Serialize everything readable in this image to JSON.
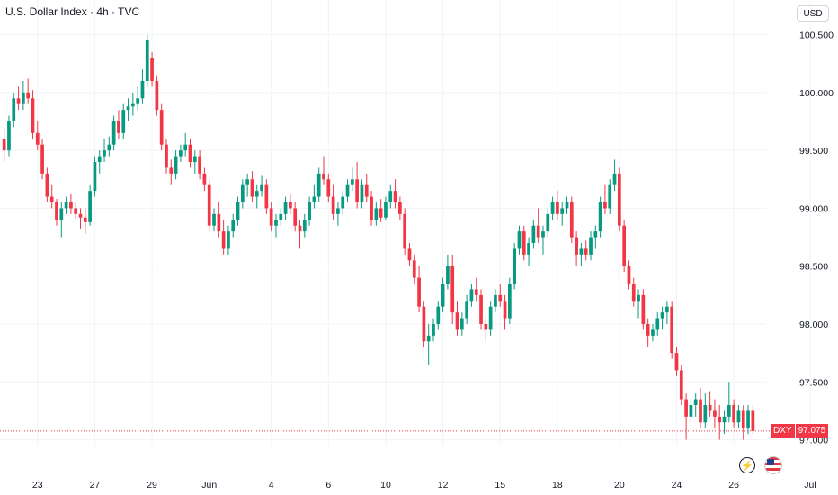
{
  "header": {
    "title": "U.S. Dollar Index · 4h · TVC",
    "currency_label": "USD"
  },
  "price_tag": {
    "symbol": "DXY",
    "value": "97.075"
  },
  "colors": {
    "up": "#089981",
    "down": "#f23645",
    "grid": "#f0f3fa",
    "text": "#131722",
    "axis_text": "#131722"
  },
  "icons": [
    "bolt-icon",
    "us-flag-icon"
  ],
  "chart_data": {
    "type": "candlestick",
    "title": "U.S. Dollar Index · 4h · TVC",
    "xlabel": "",
    "ylabel": "",
    "ylim": [
      96.95,
      100.8
    ],
    "current_price": 97.075,
    "y_ticks": [
      {
        "value": 100.5,
        "label": "100.500"
      },
      {
        "value": 100.0,
        "label": "100.000"
      },
      {
        "value": 99.5,
        "label": "99.500"
      },
      {
        "value": 99.0,
        "label": "99.000"
      },
      {
        "value": 98.5,
        "label": "98.500"
      },
      {
        "value": 98.0,
        "label": "98.000"
      },
      {
        "value": 97.5,
        "label": "97.500"
      },
      {
        "value": 97.0,
        "label": "97.000"
      }
    ],
    "x_ticks": [
      {
        "index": 7,
        "label": "23"
      },
      {
        "index": 19,
        "label": "27"
      },
      {
        "index": 31,
        "label": "29"
      },
      {
        "index": 43,
        "label": "Jun"
      },
      {
        "index": 56,
        "label": "4"
      },
      {
        "index": 68,
        "label": "6"
      },
      {
        "index": 80,
        "label": "10"
      },
      {
        "index": 92,
        "label": "12"
      },
      {
        "index": 104,
        "label": "15"
      },
      {
        "index": 116,
        "label": "18"
      },
      {
        "index": 129,
        "label": "20"
      },
      {
        "index": 141,
        "label": "24"
      },
      {
        "index": 153,
        "label": "26"
      },
      {
        "index": 169,
        "label": "Jul"
      }
    ],
    "candles": [
      [
        99.6,
        99.7,
        99.4,
        99.5
      ],
      [
        99.5,
        99.8,
        99.45,
        99.75
      ],
      [
        99.75,
        100.0,
        99.7,
        99.95
      ],
      [
        99.95,
        100.05,
        99.85,
        99.9
      ],
      [
        99.9,
        100.1,
        99.85,
        100.0
      ],
      [
        100.0,
        100.12,
        99.9,
        99.95
      ],
      [
        99.95,
        100.02,
        99.6,
        99.65
      ],
      [
        99.65,
        99.75,
        99.5,
        99.55
      ],
      [
        99.55,
        99.6,
        99.25,
        99.3
      ],
      [
        99.3,
        99.35,
        99.05,
        99.1
      ],
      [
        99.1,
        99.2,
        99.0,
        99.05
      ],
      [
        99.05,
        99.08,
        98.85,
        98.9
      ],
      [
        98.9,
        99.05,
        98.75,
        99.0
      ],
      [
        99.0,
        99.1,
        98.95,
        99.05
      ],
      [
        99.05,
        99.12,
        98.95,
        99.0
      ],
      [
        99.0,
        99.05,
        98.9,
        98.95
      ],
      [
        98.95,
        99.0,
        98.82,
        98.92
      ],
      [
        98.92,
        99.0,
        98.78,
        98.88
      ],
      [
        98.88,
        99.2,
        98.85,
        99.15
      ],
      [
        99.15,
        99.45,
        99.1,
        99.4
      ],
      [
        99.4,
        99.5,
        99.3,
        99.45
      ],
      [
        99.45,
        99.6,
        99.4,
        99.5
      ],
      [
        99.5,
        99.62,
        99.45,
        99.55
      ],
      [
        99.55,
        99.8,
        99.5,
        99.75
      ],
      [
        99.75,
        99.85,
        99.6,
        99.65
      ],
      [
        99.65,
        99.9,
        99.6,
        99.85
      ],
      [
        99.85,
        99.95,
        99.75,
        99.88
      ],
      [
        99.88,
        100.0,
        99.8,
        99.9
      ],
      [
        99.9,
        100.05,
        99.85,
        99.95
      ],
      [
        99.95,
        100.2,
        99.9,
        100.1
      ],
      [
        100.1,
        100.5,
        100.05,
        100.45
      ],
      [
        100.3,
        100.35,
        100.05,
        100.1
      ],
      [
        100.1,
        100.15,
        99.8,
        99.85
      ],
      [
        99.85,
        99.9,
        99.5,
        99.55
      ],
      [
        99.55,
        99.6,
        99.3,
        99.35
      ],
      [
        99.35,
        99.42,
        99.2,
        99.3
      ],
      [
        99.3,
        99.5,
        99.25,
        99.45
      ],
      [
        99.45,
        99.55,
        99.4,
        99.5
      ],
      [
        99.5,
        99.65,
        99.45,
        99.55
      ],
      [
        99.55,
        99.6,
        99.35,
        99.4
      ],
      [
        99.4,
        99.5,
        99.3,
        99.45
      ],
      [
        99.45,
        99.5,
        99.25,
        99.3
      ],
      [
        99.3,
        99.35,
        99.15,
        99.2
      ],
      [
        99.2,
        99.25,
        98.8,
        98.85
      ],
      [
        98.85,
        99.0,
        98.8,
        98.95
      ],
      [
        98.95,
        99.05,
        98.75,
        98.8
      ],
      [
        98.8,
        98.9,
        98.6,
        98.65
      ],
      [
        98.65,
        98.85,
        98.6,
        98.8
      ],
      [
        98.8,
        98.95,
        98.75,
        98.9
      ],
      [
        98.9,
        99.1,
        98.85,
        99.05
      ],
      [
        99.05,
        99.25,
        99.0,
        99.2
      ],
      [
        99.2,
        99.3,
        99.1,
        99.25
      ],
      [
        99.25,
        99.32,
        99.05,
        99.1
      ],
      [
        99.1,
        99.2,
        99.0,
        99.15
      ],
      [
        99.15,
        99.28,
        99.1,
        99.2
      ],
      [
        99.2,
        99.25,
        98.95,
        99.0
      ],
      [
        99.0,
        99.05,
        98.8,
        98.85
      ],
      [
        98.85,
        98.95,
        98.75,
        98.9
      ],
      [
        98.9,
        99.0,
        98.85,
        98.95
      ],
      [
        98.95,
        99.1,
        98.9,
        99.05
      ],
      [
        99.05,
        99.12,
        98.95,
        99.0
      ],
      [
        99.0,
        99.05,
        98.8,
        98.85
      ],
      [
        98.85,
        98.9,
        98.65,
        98.8
      ],
      [
        98.8,
        98.95,
        98.75,
        98.9
      ],
      [
        98.9,
        99.1,
        98.85,
        99.05
      ],
      [
        99.05,
        99.2,
        99.0,
        99.1
      ],
      [
        99.1,
        99.35,
        99.05,
        99.3
      ],
      [
        99.3,
        99.45,
        99.2,
        99.25
      ],
      [
        99.25,
        99.3,
        99.05,
        99.1
      ],
      [
        99.1,
        99.2,
        98.9,
        98.95
      ],
      [
        98.95,
        99.05,
        98.85,
        99.0
      ],
      [
        99.0,
        99.15,
        98.95,
        99.1
      ],
      [
        99.1,
        99.25,
        99.05,
        99.2
      ],
      [
        99.2,
        99.35,
        99.15,
        99.25
      ],
      [
        99.25,
        99.4,
        99.0,
        99.05
      ],
      [
        99.05,
        99.25,
        99.0,
        99.2
      ],
      [
        99.2,
        99.3,
        99.05,
        99.1
      ],
      [
        99.1,
        99.15,
        98.85,
        98.9
      ],
      [
        98.9,
        99.05,
        98.85,
        99.0
      ],
      [
        99.0,
        99.08,
        98.88,
        98.92
      ],
      [
        98.92,
        99.1,
        98.9,
        99.05
      ],
      [
        99.05,
        99.2,
        99.0,
        99.15
      ],
      [
        99.15,
        99.25,
        99.0,
        99.05
      ],
      [
        99.05,
        99.1,
        98.9,
        98.95
      ],
      [
        98.95,
        99.0,
        98.6,
        98.65
      ],
      [
        98.65,
        98.7,
        98.5,
        98.55
      ],
      [
        98.55,
        98.6,
        98.35,
        98.4
      ],
      [
        98.4,
        98.5,
        98.1,
        98.15
      ],
      [
        98.15,
        98.2,
        97.8,
        97.85
      ],
      [
        97.85,
        98.0,
        97.65,
        97.9
      ],
      [
        97.9,
        98.05,
        97.85,
        98.0
      ],
      [
        98.0,
        98.2,
        97.95,
        98.15
      ],
      [
        98.15,
        98.4,
        98.1,
        98.35
      ],
      [
        98.35,
        98.6,
        98.3,
        98.5
      ],
      [
        98.5,
        98.6,
        98.0,
        98.1
      ],
      [
        98.1,
        98.2,
        97.9,
        97.95
      ],
      [
        97.95,
        98.1,
        97.9,
        98.05
      ],
      [
        98.05,
        98.25,
        98.0,
        98.2
      ],
      [
        98.2,
        98.35,
        98.15,
        98.3
      ],
      [
        98.3,
        98.4,
        98.2,
        98.25
      ],
      [
        98.25,
        98.3,
        97.95,
        98.0
      ],
      [
        98.0,
        98.05,
        97.85,
        97.95
      ],
      [
        97.95,
        98.2,
        97.9,
        98.15
      ],
      [
        98.15,
        98.3,
        98.1,
        98.25
      ],
      [
        98.25,
        98.35,
        98.15,
        98.2
      ],
      [
        98.2,
        98.25,
        97.95,
        98.05
      ],
      [
        98.05,
        98.4,
        98.0,
        98.35
      ],
      [
        98.35,
        98.7,
        98.3,
        98.65
      ],
      [
        98.65,
        98.85,
        98.6,
        98.8
      ],
      [
        98.8,
        98.85,
        98.55,
        98.6
      ],
      [
        98.6,
        98.75,
        98.5,
        98.7
      ],
      [
        98.7,
        98.9,
        98.65,
        98.85
      ],
      [
        98.85,
        99.0,
        98.7,
        98.75
      ],
      [
        98.75,
        98.85,
        98.6,
        98.8
      ],
      [
        98.8,
        99.0,
        98.75,
        98.95
      ],
      [
        98.95,
        99.1,
        98.9,
        99.05
      ],
      [
        99.05,
        99.15,
        98.9,
        98.95
      ],
      [
        98.95,
        99.05,
        98.85,
        99.0
      ],
      [
        99.0,
        99.1,
        98.95,
        99.05
      ],
      [
        99.05,
        99.1,
        98.7,
        98.75
      ],
      [
        98.75,
        98.8,
        98.5,
        98.6
      ],
      [
        98.6,
        98.7,
        98.5,
        98.65
      ],
      [
        98.65,
        98.72,
        98.55,
        98.6
      ],
      [
        98.6,
        98.8,
        98.55,
        98.75
      ],
      [
        98.75,
        98.85,
        98.65,
        98.8
      ],
      [
        98.8,
        99.1,
        98.75,
        99.05
      ],
      [
        99.05,
        99.2,
        98.95,
        99.0
      ],
      [
        99.0,
        99.25,
        98.95,
        99.2
      ],
      [
        99.2,
        99.42,
        99.15,
        99.3
      ],
      [
        99.3,
        99.35,
        98.8,
        98.85
      ],
      [
        98.85,
        98.9,
        98.45,
        98.5
      ],
      [
        98.5,
        98.55,
        98.3,
        98.35
      ],
      [
        98.35,
        98.4,
        98.15,
        98.2
      ],
      [
        98.2,
        98.3,
        98.05,
        98.25
      ],
      [
        98.25,
        98.3,
        97.95,
        98.0
      ],
      [
        98.0,
        98.05,
        97.8,
        97.9
      ],
      [
        97.9,
        98.0,
        97.85,
        97.95
      ],
      [
        97.95,
        98.1,
        97.9,
        98.05
      ],
      [
        98.05,
        98.15,
        97.95,
        98.1
      ],
      [
        98.1,
        98.2,
        98.0,
        98.15
      ],
      [
        98.15,
        98.2,
        97.7,
        97.75
      ],
      [
        97.75,
        97.8,
        97.55,
        97.6
      ],
      [
        97.6,
        97.65,
        97.3,
        97.35
      ],
      [
        97.35,
        97.4,
        97.0,
        97.2
      ],
      [
        97.2,
        97.35,
        97.15,
        97.3
      ],
      [
        97.3,
        97.4,
        97.2,
        97.35
      ],
      [
        97.35,
        97.45,
        97.1,
        97.15
      ],
      [
        97.15,
        97.4,
        97.1,
        97.3
      ],
      [
        97.3,
        97.42,
        97.2,
        97.25
      ],
      [
        97.25,
        97.35,
        97.1,
        97.2
      ],
      [
        97.2,
        97.3,
        97.0,
        97.15
      ],
      [
        97.15,
        97.25,
        97.05,
        97.2
      ],
      [
        97.2,
        97.5,
        97.15,
        97.3
      ],
      [
        97.3,
        97.35,
        97.1,
        97.15
      ],
      [
        97.15,
        97.3,
        97.1,
        97.25
      ],
      [
        97.25,
        97.3,
        97.0,
        97.1
      ],
      [
        97.1,
        97.3,
        97.05,
        97.25
      ],
      [
        97.25,
        97.3,
        97.05,
        97.075
      ]
    ]
  }
}
